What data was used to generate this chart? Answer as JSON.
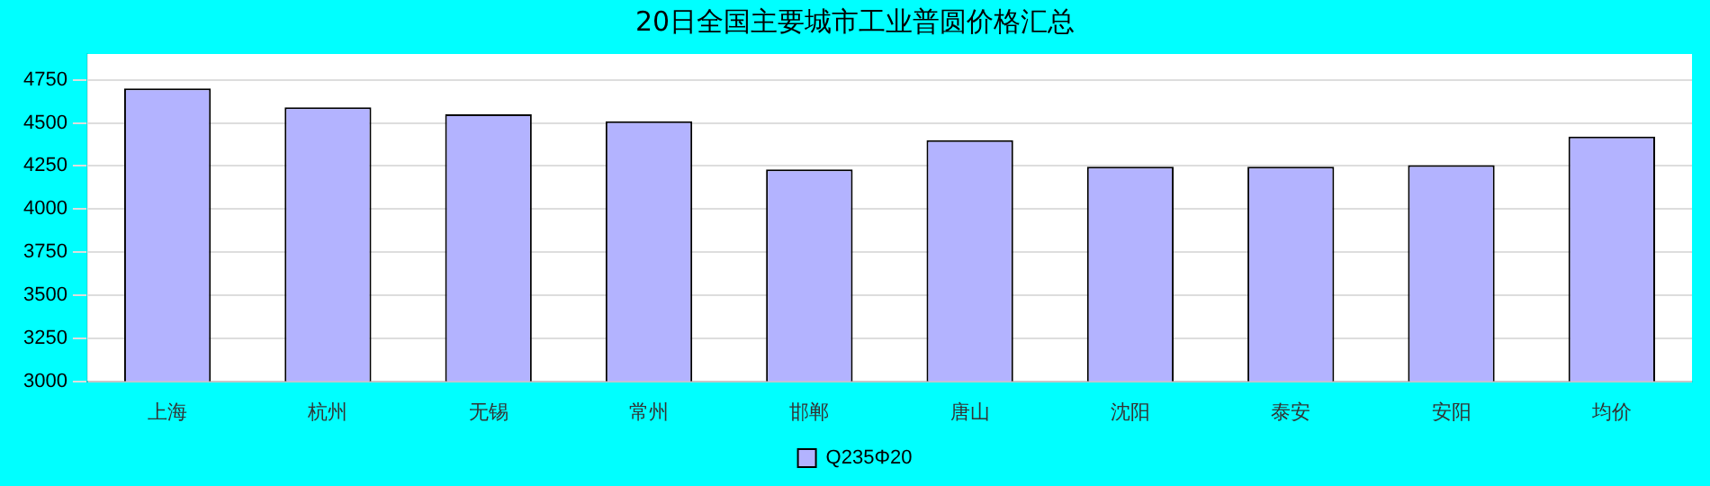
{
  "chart_data": {
    "type": "bar",
    "title": "20日全国主要城市工业普圆价格汇总",
    "categories": [
      "上海",
      "杭州",
      "无锡",
      "常州",
      "邯郸",
      "唐山",
      "沈阳",
      "泰安",
      "安阳",
      "均价"
    ],
    "series": [
      {
        "name": "Q235Φ20",
        "color": "#b3b3ff",
        "values": [
          4700,
          4590,
          4550,
          4510,
          4230,
          4400,
          4245,
          4245,
          4255,
          4420
        ]
      }
    ],
    "ylim": [
      3000,
      4900
    ],
    "yticks": [
      3000,
      3250,
      3500,
      3750,
      4000,
      4250,
      4500,
      4750
    ],
    "grid": "y",
    "legend": "bottom"
  }
}
